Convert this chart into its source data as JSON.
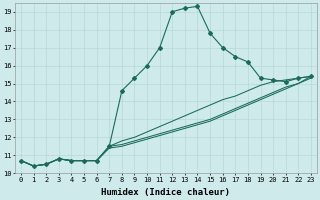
{
  "xlabel": "Humidex (Indice chaleur)",
  "bg_color": "#ceeaea",
  "line_color": "#1a6b5a",
  "grid_color": "#b8d8d8",
  "xlim": [
    -0.5,
    23.5
  ],
  "ylim": [
    10,
    19.5
  ],
  "yticks": [
    10,
    11,
    12,
    13,
    14,
    15,
    16,
    17,
    18,
    19
  ],
  "xticks": [
    0,
    1,
    2,
    3,
    4,
    5,
    6,
    7,
    8,
    9,
    10,
    11,
    12,
    13,
    14,
    15,
    16,
    17,
    18,
    19,
    20,
    21,
    22,
    23
  ],
  "lines": [
    {
      "x": [
        0,
        1,
        2,
        3,
        4,
        5,
        6,
        7,
        8,
        9,
        10,
        11,
        12,
        13,
        14,
        15,
        16,
        17,
        18,
        19,
        20,
        21,
        22,
        23
      ],
      "y": [
        10.7,
        10.4,
        10.5,
        10.8,
        10.7,
        10.7,
        10.7,
        11.5,
        14.6,
        15.3,
        16.0,
        17.0,
        19.0,
        19.2,
        19.3,
        17.8,
        17.0,
        16.5,
        16.2,
        15.3,
        15.2,
        15.1,
        15.3,
        15.4
      ],
      "marker": true
    },
    {
      "x": [
        0,
        1,
        2,
        3,
        4,
        5,
        6,
        7,
        8,
        9,
        10,
        11,
        12,
        13,
        14,
        15,
        16,
        17,
        18,
        19,
        20,
        21,
        22,
        23
      ],
      "y": [
        10.7,
        10.4,
        10.5,
        10.8,
        10.7,
        10.7,
        10.7,
        11.5,
        11.8,
        12.0,
        12.3,
        12.6,
        12.9,
        13.2,
        13.5,
        13.8,
        14.1,
        14.3,
        14.6,
        14.9,
        15.1,
        15.2,
        15.3,
        15.4
      ],
      "marker": false
    },
    {
      "x": [
        0,
        1,
        2,
        3,
        4,
        5,
        6,
        7,
        8,
        9,
        10,
        11,
        12,
        13,
        14,
        15,
        16,
        17,
        18,
        19,
        20,
        21,
        22,
        23
      ],
      "y": [
        10.7,
        10.4,
        10.5,
        10.8,
        10.7,
        10.7,
        10.7,
        11.5,
        11.6,
        11.8,
        12.0,
        12.2,
        12.4,
        12.6,
        12.8,
        13.0,
        13.3,
        13.6,
        13.9,
        14.2,
        14.5,
        14.8,
        15.0,
        15.4
      ],
      "marker": false
    },
    {
      "x": [
        0,
        1,
        2,
        3,
        4,
        5,
        6,
        7,
        8,
        9,
        10,
        11,
        12,
        13,
        14,
        15,
        16,
        17,
        18,
        19,
        20,
        21,
        22,
        23
      ],
      "y": [
        10.7,
        10.4,
        10.5,
        10.8,
        10.7,
        10.7,
        10.7,
        11.4,
        11.5,
        11.7,
        11.9,
        12.1,
        12.3,
        12.5,
        12.7,
        12.9,
        13.2,
        13.5,
        13.8,
        14.1,
        14.4,
        14.7,
        15.0,
        15.3
      ],
      "marker": false
    }
  ],
  "tick_fontsize": 5.0,
  "xlabel_fontsize": 6.5
}
